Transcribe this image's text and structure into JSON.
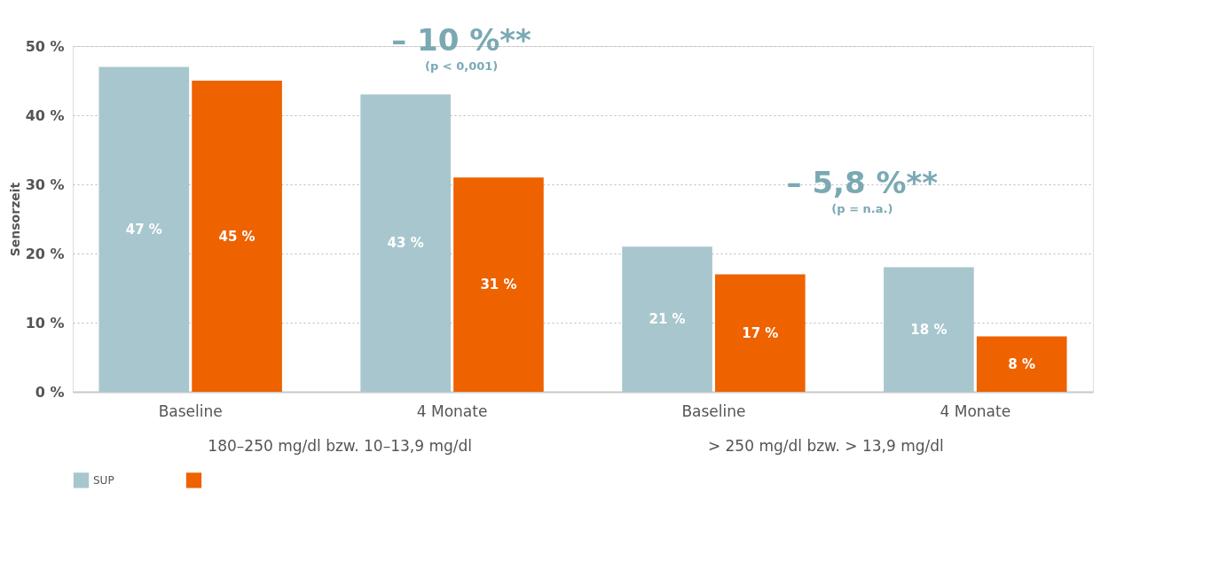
{
  "chart_data": {
    "type": "bar",
    "ylabel": "Sensorzeit",
    "categories": [
      "Baseline",
      "4 Monate",
      "Baseline",
      "4 Monate"
    ],
    "series": [
      {
        "name": "SUP",
        "color": "#a8c6cd",
        "values": [
          47,
          43,
          21,
          18
        ],
        "value_labels": [
          "47 %",
          "43 %",
          "21 %",
          "18 %"
        ]
      },
      {
        "color": "#ee6200",
        "values": [
          45,
          31,
          17,
          8
        ],
        "value_labels": [
          "45 %",
          "31 %",
          "17 %",
          "8 %"
        ]
      }
    ],
    "ylim": [
      0,
      50
    ],
    "yticks": [
      {
        "value": 0,
        "label": "0 %"
      },
      {
        "value": 10,
        "label": "10 %"
      },
      {
        "value": 20,
        "label": "20 %"
      },
      {
        "value": 30,
        "label": "30 %"
      },
      {
        "value": 40,
        "label": "40 %"
      },
      {
        "value": 50,
        "label": "50 %"
      }
    ],
    "grid": "y",
    "legend": "bottom",
    "annotations": [
      "180–250 mg/dl bzw. 10–13,9 mg/dl",
      "> 250 mg/dl bzw. > 13,9 mg/dl",
      "– 10 %**",
      "(p < 0,001)",
      "– 5,8 %**",
      "(p = n.a.)"
    ]
  }
}
